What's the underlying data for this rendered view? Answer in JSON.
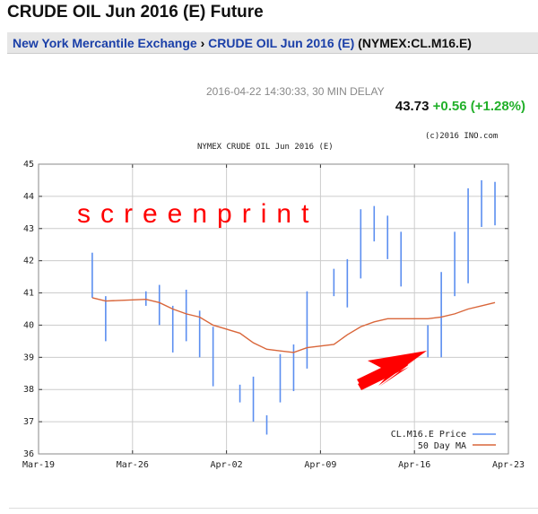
{
  "header": {
    "title": "CRUDE OIL Jun 2016 (E) Future"
  },
  "breadcrumb": {
    "exchange": "New York Mercantile Exchange",
    "separator": "›",
    "contract": "CRUDE OIL Jun 2016 (E)",
    "symbol": "(NYMEX:CL.M16.E)"
  },
  "quote": {
    "timestamp": "2016-04-22 14:30:33, 30 MIN DELAY",
    "last": "43.73",
    "change": "+0.56 (+1.28%)",
    "change_color": "#22b02a"
  },
  "copyright": "(c)2016 INO.com",
  "annotation": {
    "text": "screenprint",
    "arrow": "red-arrow",
    "color": "#ff0000"
  },
  "chart_data": {
    "type": "bar",
    "subtype": "high-low range bars with moving average line",
    "title": "NYMEX CRUDE OIL Jun 2016 (E)",
    "xlabel": "",
    "ylabel": "",
    "ylim": [
      36,
      45
    ],
    "yticks": [
      "36",
      "37",
      "38",
      "39",
      "40",
      "41",
      "42",
      "43",
      "44",
      "45"
    ],
    "xlim": [
      "2016-03-19",
      "2016-04-23"
    ],
    "xticks": [
      "Mar-19",
      "Mar-26",
      "Apr-02",
      "Apr-09",
      "Apr-16",
      "Apr-23"
    ],
    "grid": true,
    "legend": "bottom-right",
    "series": [
      {
        "name": "CL.M16.E Price",
        "color": "#5b8ef0",
        "type": "range",
        "points": [
          {
            "date": "2016-03-23",
            "high": 42.25,
            "low": 40.85
          },
          {
            "date": "2016-03-24",
            "high": 40.9,
            "low": 39.5
          },
          {
            "date": "2016-03-27",
            "high": 41.05,
            "low": 40.6
          },
          {
            "date": "2016-03-28",
            "high": 41.25,
            "low": 40.0
          },
          {
            "date": "2016-03-29",
            "high": 40.6,
            "low": 39.15
          },
          {
            "date": "2016-03-30",
            "high": 41.1,
            "low": 39.5
          },
          {
            "date": "2016-03-31",
            "high": 40.45,
            "low": 39.0
          },
          {
            "date": "2016-04-01",
            "high": 39.95,
            "low": 38.1
          },
          {
            "date": "2016-04-03",
            "high": 38.15,
            "low": 37.6
          },
          {
            "date": "2016-04-04",
            "high": 38.4,
            "low": 37.0
          },
          {
            "date": "2016-04-05",
            "high": 37.2,
            "low": 36.6
          },
          {
            "date": "2016-04-06",
            "high": 39.1,
            "low": 37.6
          },
          {
            "date": "2016-04-07",
            "high": 39.4,
            "low": 37.95
          },
          {
            "date": "2016-04-08",
            "high": 41.05,
            "low": 38.65
          },
          {
            "date": "2016-04-10",
            "high": 41.75,
            "low": 40.9
          },
          {
            "date": "2016-04-11",
            "high": 42.05,
            "low": 40.55
          },
          {
            "date": "2016-04-12",
            "high": 43.6,
            "low": 41.45
          },
          {
            "date": "2016-04-13",
            "high": 43.7,
            "low": 42.6
          },
          {
            "date": "2016-04-14",
            "high": 43.4,
            "low": 42.05
          },
          {
            "date": "2016-04-15",
            "high": 42.9,
            "low": 41.2
          },
          {
            "date": "2016-04-17",
            "high": 40.0,
            "low": 39.0
          },
          {
            "date": "2016-04-18",
            "high": 41.65,
            "low": 39.0
          },
          {
            "date": "2016-04-19",
            "high": 42.9,
            "low": 40.9
          },
          {
            "date": "2016-04-20",
            "high": 44.25,
            "low": 41.3
          },
          {
            "date": "2016-04-21",
            "high": 44.5,
            "low": 43.05
          },
          {
            "date": "2016-04-22",
            "high": 44.45,
            "low": 43.1
          }
        ]
      },
      {
        "name": "50 Day MA",
        "color": "#d9663a",
        "type": "line",
        "points": [
          [
            "2016-03-23",
            40.85
          ],
          [
            "2016-03-24",
            40.75
          ],
          [
            "2016-03-27",
            40.8
          ],
          [
            "2016-03-28",
            40.7
          ],
          [
            "2016-03-29",
            40.5
          ],
          [
            "2016-03-30",
            40.35
          ],
          [
            "2016-03-31",
            40.25
          ],
          [
            "2016-04-01",
            40.0
          ],
          [
            "2016-04-03",
            39.75
          ],
          [
            "2016-04-04",
            39.45
          ],
          [
            "2016-04-05",
            39.25
          ],
          [
            "2016-04-06",
            39.2
          ],
          [
            "2016-04-07",
            39.15
          ],
          [
            "2016-04-08",
            39.3
          ],
          [
            "2016-04-10",
            39.4
          ],
          [
            "2016-04-11",
            39.7
          ],
          [
            "2016-04-12",
            39.95
          ],
          [
            "2016-04-13",
            40.1
          ],
          [
            "2016-04-14",
            40.2
          ],
          [
            "2016-04-15",
            40.2
          ],
          [
            "2016-04-17",
            40.2
          ],
          [
            "2016-04-18",
            40.25
          ],
          [
            "2016-04-19",
            40.35
          ],
          [
            "2016-04-20",
            40.5
          ],
          [
            "2016-04-21",
            40.6
          ],
          [
            "2016-04-22",
            40.7
          ]
        ]
      }
    ]
  }
}
